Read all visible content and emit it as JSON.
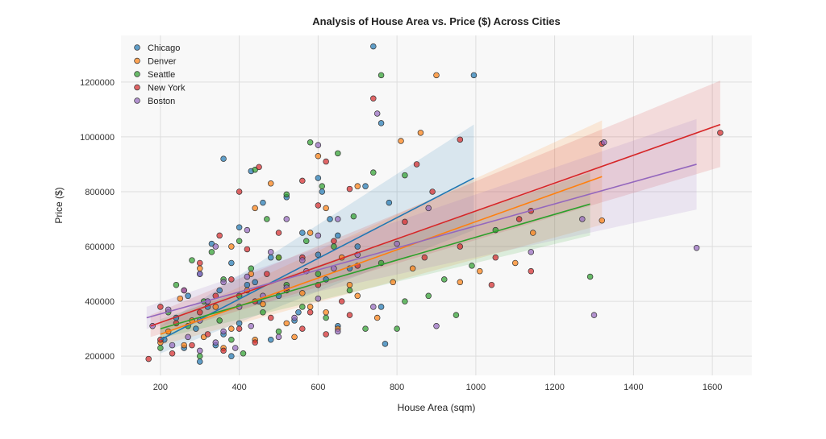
{
  "chart_data": {
    "type": "scatter",
    "title": "Analysis of House Area vs. Price ($) Across Cities",
    "xlabel": "House Area (sqm)",
    "ylabel": "Price ($)",
    "xlim": [
      100,
      1700
    ],
    "ylim": [
      130000,
      1370000
    ],
    "xticks": [
      200,
      400,
      600,
      800,
      1000,
      1200,
      1400,
      1600
    ],
    "yticks": [
      200000,
      400000,
      600000,
      800000,
      1000000,
      1200000
    ],
    "grid": true,
    "legend_position": "top-left",
    "series": [
      {
        "name": "Chicago",
        "color": "#1f77b4",
        "points": [
          [
            740,
            1330000
          ],
          [
            995,
            1225000
          ],
          [
            760,
            1050000
          ],
          [
            360,
            920000
          ],
          [
            430,
            875000
          ],
          [
            600,
            850000
          ],
          [
            610,
            800000
          ],
          [
            520,
            780000
          ],
          [
            460,
            760000
          ],
          [
            780,
            760000
          ],
          [
            630,
            700000
          ],
          [
            400,
            670000
          ],
          [
            560,
            650000
          ],
          [
            650,
            640000
          ],
          [
            330,
            610000
          ],
          [
            700,
            600000
          ],
          [
            480,
            560000
          ],
          [
            380,
            540000
          ],
          [
            300,
            500000
          ],
          [
            620,
            480000
          ],
          [
            420,
            460000
          ],
          [
            350,
            440000
          ],
          [
            270,
            420000
          ],
          [
            500,
            420000
          ],
          [
            450,
            400000
          ],
          [
            760,
            380000
          ],
          [
            320,
            380000
          ],
          [
            550,
            360000
          ],
          [
            240,
            340000
          ],
          [
            400,
            320000
          ],
          [
            290,
            300000
          ],
          [
            650,
            310000
          ],
          [
            360,
            280000
          ],
          [
            210,
            260000
          ],
          [
            480,
            260000
          ],
          [
            340,
            240000
          ],
          [
            770,
            245000
          ],
          [
            380,
            200000
          ],
          [
            300,
            180000
          ],
          [
            260,
            230000
          ],
          [
            540,
            330000
          ],
          [
            680,
            520000
          ],
          [
            720,
            820000
          ],
          [
            600,
            570000
          ],
          [
            440,
            470000
          ]
        ]
      },
      {
        "name": "Denver",
        "color": "#ff7f0e",
        "points": [
          [
            900,
            1225000
          ],
          [
            860,
            1015000
          ],
          [
            810,
            985000
          ],
          [
            600,
            930000
          ],
          [
            700,
            820000
          ],
          [
            480,
            830000
          ],
          [
            440,
            740000
          ],
          [
            620,
            740000
          ],
          [
            580,
            650000
          ],
          [
            1145,
            650000
          ],
          [
            1320,
            695000
          ],
          [
            1100,
            540000
          ],
          [
            660,
            560000
          ],
          [
            380,
            600000
          ],
          [
            500,
            560000
          ],
          [
            300,
            520000
          ],
          [
            840,
            520000
          ],
          [
            960,
            470000
          ],
          [
            420,
            440000
          ],
          [
            560,
            430000
          ],
          [
            700,
            420000
          ],
          [
            250,
            410000
          ],
          [
            460,
            390000
          ],
          [
            340,
            380000
          ],
          [
            620,
            360000
          ],
          [
            750,
            340000
          ],
          [
            280,
            330000
          ],
          [
            520,
            320000
          ],
          [
            380,
            300000
          ],
          [
            220,
            290000
          ],
          [
            650,
            300000
          ],
          [
            310,
            270000
          ],
          [
            440,
            260000
          ],
          [
            260,
            240000
          ],
          [
            360,
            230000
          ],
          [
            200,
            250000
          ],
          [
            540,
            270000
          ],
          [
            580,
            380000
          ],
          [
            430,
            500000
          ],
          [
            1010,
            510000
          ],
          [
            680,
            460000
          ],
          [
            790,
            470000
          ]
        ]
      },
      {
        "name": "Seattle",
        "color": "#2ca02c",
        "points": [
          [
            760,
            1225000
          ],
          [
            580,
            980000
          ],
          [
            650,
            940000
          ],
          [
            440,
            880000
          ],
          [
            740,
            870000
          ],
          [
            820,
            860000
          ],
          [
            610,
            820000
          ],
          [
            520,
            790000
          ],
          [
            470,
            700000
          ],
          [
            690,
            710000
          ],
          [
            1290,
            490000
          ],
          [
            1050,
            660000
          ],
          [
            990,
            530000
          ],
          [
            920,
            480000
          ],
          [
            950,
            350000
          ],
          [
            570,
            620000
          ],
          [
            400,
            620000
          ],
          [
            640,
            600000
          ],
          [
            330,
            580000
          ],
          [
            500,
            560000
          ],
          [
            280,
            550000
          ],
          [
            760,
            540000
          ],
          [
            430,
            520000
          ],
          [
            600,
            500000
          ],
          [
            360,
            480000
          ],
          [
            520,
            460000
          ],
          [
            240,
            460000
          ],
          [
            680,
            440000
          ],
          [
            400,
            420000
          ],
          [
            310,
            400000
          ],
          [
            560,
            380000
          ],
          [
            460,
            360000
          ],
          [
            220,
            360000
          ],
          [
            620,
            340000
          ],
          [
            350,
            330000
          ],
          [
            270,
            310000
          ],
          [
            500,
            290000
          ],
          [
            800,
            300000
          ],
          [
            380,
            260000
          ],
          [
            200,
            230000
          ],
          [
            300,
            200000
          ],
          [
            410,
            210000
          ],
          [
            820,
            400000
          ],
          [
            880,
            420000
          ],
          [
            720,
            300000
          ]
        ]
      },
      {
        "name": "New York",
        "color": "#d62728",
        "points": [
          [
            740,
            1140000
          ],
          [
            960,
            990000
          ],
          [
            620,
            910000
          ],
          [
            450,
            890000
          ],
          [
            850,
            900000
          ],
          [
            560,
            840000
          ],
          [
            680,
            810000
          ],
          [
            890,
            800000
          ],
          [
            400,
            800000
          ],
          [
            600,
            750000
          ],
          [
            1620,
            1015000
          ],
          [
            1320,
            975000
          ],
          [
            1140,
            730000
          ],
          [
            1110,
            700000
          ],
          [
            820,
            690000
          ],
          [
            1050,
            560000
          ],
          [
            1140,
            510000
          ],
          [
            960,
            600000
          ],
          [
            500,
            650000
          ],
          [
            350,
            640000
          ],
          [
            640,
            620000
          ],
          [
            420,
            590000
          ],
          [
            560,
            560000
          ],
          [
            300,
            540000
          ],
          [
            700,
            530000
          ],
          [
            470,
            500000
          ],
          [
            380,
            480000
          ],
          [
            600,
            460000
          ],
          [
            260,
            440000
          ],
          [
            520,
            440000
          ],
          [
            340,
            420000
          ],
          [
            440,
            400000
          ],
          [
            660,
            400000
          ],
          [
            200,
            380000
          ],
          [
            580,
            360000
          ],
          [
            300,
            360000
          ],
          [
            480,
            340000
          ],
          [
            240,
            320000
          ],
          [
            400,
            300000
          ],
          [
            560,
            300000
          ],
          [
            320,
            280000
          ],
          [
            200,
            260000
          ],
          [
            620,
            280000
          ],
          [
            440,
            250000
          ],
          [
            280,
            240000
          ],
          [
            360,
            220000
          ],
          [
            230,
            210000
          ],
          [
            170,
            190000
          ],
          [
            680,
            350000
          ],
          [
            1040,
            460000
          ],
          [
            870,
            560000
          ]
        ]
      },
      {
        "name": "Boston",
        "color": "#9467bd",
        "points": [
          [
            750,
            1085000
          ],
          [
            600,
            970000
          ],
          [
            1325,
            980000
          ],
          [
            1560,
            595000
          ],
          [
            1300,
            350000
          ],
          [
            900,
            310000
          ],
          [
            1270,
            700000
          ],
          [
            880,
            740000
          ],
          [
            650,
            700000
          ],
          [
            520,
            700000
          ],
          [
            420,
            660000
          ],
          [
            600,
            640000
          ],
          [
            340,
            600000
          ],
          [
            480,
            580000
          ],
          [
            700,
            570000
          ],
          [
            560,
            550000
          ],
          [
            300,
            500000
          ],
          [
            640,
            520000
          ],
          [
            420,
            490000
          ],
          [
            360,
            470000
          ],
          [
            520,
            450000
          ],
          [
            260,
            440000
          ],
          [
            460,
            420000
          ],
          [
            600,
            410000
          ],
          [
            320,
            400000
          ],
          [
            740,
            380000
          ],
          [
            400,
            380000
          ],
          [
            220,
            370000
          ],
          [
            540,
            340000
          ],
          [
            300,
            330000
          ],
          [
            430,
            310000
          ],
          [
            180,
            310000
          ],
          [
            650,
            290000
          ],
          [
            360,
            290000
          ],
          [
            270,
            270000
          ],
          [
            500,
            270000
          ],
          [
            340,
            250000
          ],
          [
            230,
            240000
          ],
          [
            390,
            230000
          ],
          [
            300,
            220000
          ],
          [
            570,
            510000
          ],
          [
            800,
            610000
          ],
          [
            1140,
            580000
          ]
        ]
      }
    ],
    "regressions": [
      {
        "series": "Chicago",
        "x": [
          200,
          995
        ],
        "y": [
          260000,
          850000
        ],
        "ci_start": [
          210000,
          310000
        ],
        "ci_end": [
          660000,
          1045000
        ]
      },
      {
        "series": "Denver",
        "x": [
          200,
          1320
        ],
        "y": [
          280000,
          855000
        ],
        "ci_start": [
          240000,
          320000
        ],
        "ci_end": [
          680000,
          1060000
        ]
      },
      {
        "series": "Seattle",
        "x": [
          200,
          1290
        ],
        "y": [
          300000,
          755000
        ],
        "ci_start": [
          265000,
          335000
        ],
        "ci_end": [
          640000,
          870000
        ]
      },
      {
        "series": "New York",
        "x": [
          175,
          1620
        ],
        "y": [
          310000,
          1045000
        ],
        "ci_start": [
          270000,
          350000
        ],
        "ci_end": [
          890000,
          1205000
        ]
      },
      {
        "series": "Boston",
        "x": [
          165,
          1560
        ],
        "y": [
          340000,
          900000
        ],
        "ci_start": [
          300000,
          380000
        ],
        "ci_end": [
          735000,
          1065000
        ]
      }
    ]
  }
}
